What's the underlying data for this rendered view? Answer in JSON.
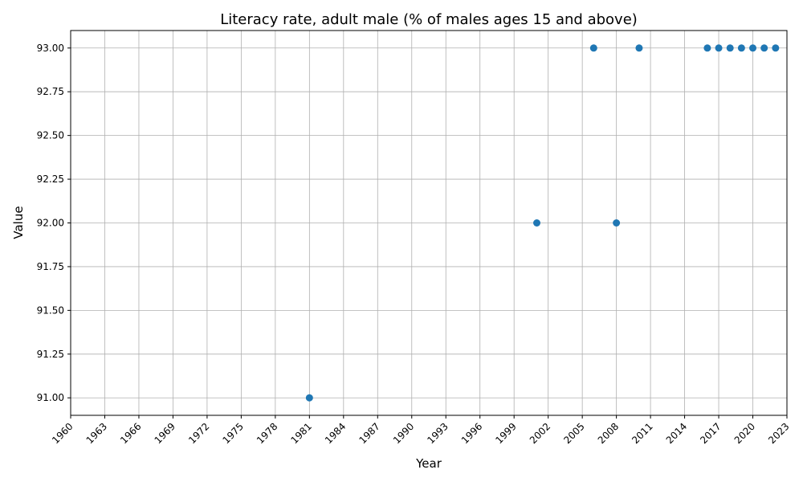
{
  "chart_data": {
    "type": "scatter",
    "title": "Literacy rate, adult male (% of males ages 15 and above)",
    "xlabel": "Year",
    "ylabel": "Value",
    "xlim": [
      1960,
      2023
    ],
    "ylim": [
      90.9,
      93.1
    ],
    "xticks": [
      1960,
      1963,
      1966,
      1969,
      1972,
      1975,
      1978,
      1981,
      1984,
      1987,
      1990,
      1993,
      1996,
      1999,
      2002,
      2005,
      2008,
      2011,
      2014,
      2017,
      2020,
      2023
    ],
    "yticks": [
      91.0,
      91.25,
      91.5,
      91.75,
      92.0,
      92.25,
      92.5,
      92.75,
      93.0
    ],
    "ytick_labels": [
      "91.00",
      "91.25",
      "91.50",
      "91.75",
      "92.00",
      "92.25",
      "92.50",
      "92.75",
      "93.00"
    ],
    "grid": true,
    "marker_color": "#1f77b4",
    "points": [
      {
        "x": 1981,
        "y": 91
      },
      {
        "x": 2001,
        "y": 92
      },
      {
        "x": 2006,
        "y": 93
      },
      {
        "x": 2008,
        "y": 92
      },
      {
        "x": 2010,
        "y": 93
      },
      {
        "x": 2016,
        "y": 93
      },
      {
        "x": 2017,
        "y": 93
      },
      {
        "x": 2018,
        "y": 93
      },
      {
        "x": 2019,
        "y": 93
      },
      {
        "x": 2020,
        "y": 93
      },
      {
        "x": 2021,
        "y": 93
      },
      {
        "x": 2022,
        "y": 93
      }
    ]
  }
}
